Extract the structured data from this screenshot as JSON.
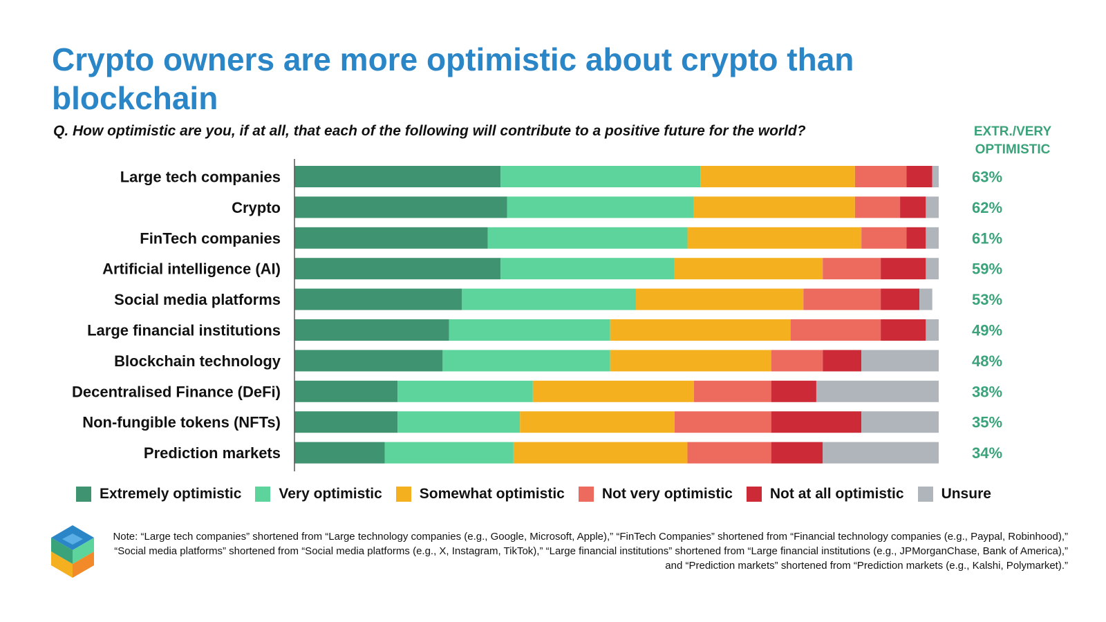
{
  "title": "Crypto owners are more optimistic about crypto than blockchain",
  "question": "Q. How optimistic are you, if at all, that each of the following will contribute to a positive future for the world?",
  "column_header": "EXTR./VERY OPTIMISTIC",
  "note": "Note: “Large tech companies” shortened from “Large technology companies (e.g., Google, Microsoft, Apple),” “FinTech Companies” shortened from “Financial technology companies (e.g., Paypal, Robinhood),” “Social media platforms” shortened from “Social media platforms (e.g., X, Instagram, TikTok),” “Large financial institutions” shortened from “Large financial institutions (e.g., JPMorganChase, Bank of America),” and “Prediction markets” shortened from “Prediction markets (e.g., Kalshi, Polymarket).”",
  "colors": {
    "title": "#2a86c6",
    "highlight": "#3aa37a",
    "series": [
      "#3f9370",
      "#5cd49c",
      "#f4b01e",
      "#ec6a5e",
      "#cc2a36",
      "#b0b5bc"
    ]
  },
  "chart_data": {
    "type": "bar",
    "orientation": "horizontal",
    "stacked": true,
    "unit": "percent",
    "categories": [
      "Large tech companies",
      "Crypto",
      "FinTech companies",
      "Artificial intelligence (AI)",
      "Social media platforms",
      "Large financial institutions",
      "Blockchain technology",
      "Decentralised Finance (DeFi)",
      "Non-fungible tokens (NFTs)",
      "Prediction markets"
    ],
    "series": [
      {
        "name": "Extremely optimistic",
        "values": [
          32,
          33,
          30,
          32,
          26,
          24,
          23,
          16,
          16,
          14
        ]
      },
      {
        "name": "Very optimistic",
        "values": [
          31,
          29,
          31,
          27,
          27,
          25,
          26,
          21,
          19,
          20
        ]
      },
      {
        "name": "Somewhat optimistic",
        "values": [
          24,
          25,
          27,
          23,
          26,
          28,
          25,
          25,
          24,
          27
        ]
      },
      {
        "name": "Not very optimistic",
        "values": [
          8,
          7,
          7,
          9,
          12,
          14,
          8,
          12,
          15,
          13
        ]
      },
      {
        "name": "Not at all optimistic",
        "values": [
          4,
          4,
          3,
          7,
          6,
          7,
          6,
          7,
          14,
          8
        ]
      },
      {
        "name": "Unsure",
        "values": [
          1,
          2,
          2,
          2,
          2,
          2,
          12,
          19,
          12,
          18
        ]
      }
    ],
    "extr_very_labels": [
      "63%",
      "62%",
      "61%",
      "59%",
      "53%",
      "49%",
      "48%",
      "38%",
      "35%",
      "34%"
    ],
    "xlim": [
      0,
      100
    ],
    "legend_position": "bottom"
  }
}
